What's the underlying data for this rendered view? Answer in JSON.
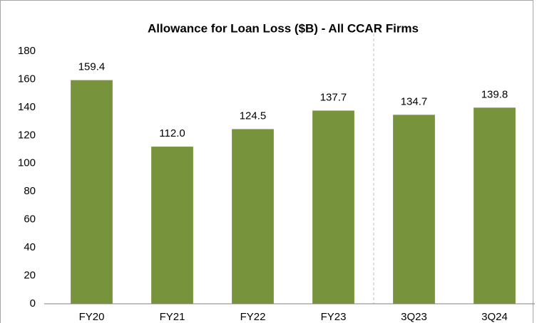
{
  "chart_data": {
    "type": "bar",
    "title": "Allowance for Loan Loss ($B) - All CCAR Firms",
    "categories": [
      "FY20",
      "FY21",
      "FY22",
      "FY23",
      "3Q23",
      "3Q24"
    ],
    "values": [
      159.4,
      112.0,
      124.5,
      137.7,
      134.7,
      139.8
    ],
    "value_labels": [
      "159.4",
      "112.0",
      "124.5",
      "137.7",
      "134.7",
      "139.8"
    ],
    "color": "#77933c",
    "ylim": [
      0,
      180
    ],
    "yticks": [
      0,
      20,
      40,
      60,
      80,
      100,
      120,
      140,
      160,
      180
    ],
    "grid": false
  }
}
